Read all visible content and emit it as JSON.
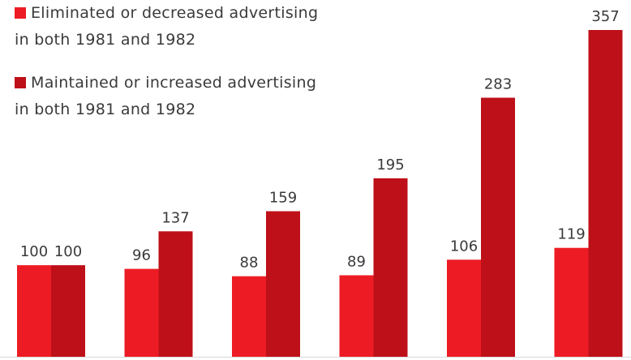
{
  "chart_data": {
    "type": "bar",
    "categories": [
      "",
      "",
      "",
      "",
      "",
      ""
    ],
    "series": [
      {
        "name": "Eliminated or decreased advertising in both 1981 and 1982",
        "name_line1": "Eliminated  or decreased advertising",
        "name_line2": "in both 1981 and 1982",
        "color": "#ed1c24",
        "values": [
          100,
          96,
          88,
          89,
          106,
          119
        ]
      },
      {
        "name": "Maintained or increased advertising in both 1981 and 1982",
        "name_line1": "Maintained  or increased advertising",
        "name_line2": "in both 1981 and 1982",
        "color": "#be1019",
        "values": [
          100,
          137,
          159,
          195,
          283,
          357
        ]
      }
    ],
    "ylim": [
      0,
      357
    ],
    "title": "",
    "xlabel": "",
    "ylabel": "",
    "grid": false,
    "legend": "top-left",
    "data_labels": true
  }
}
